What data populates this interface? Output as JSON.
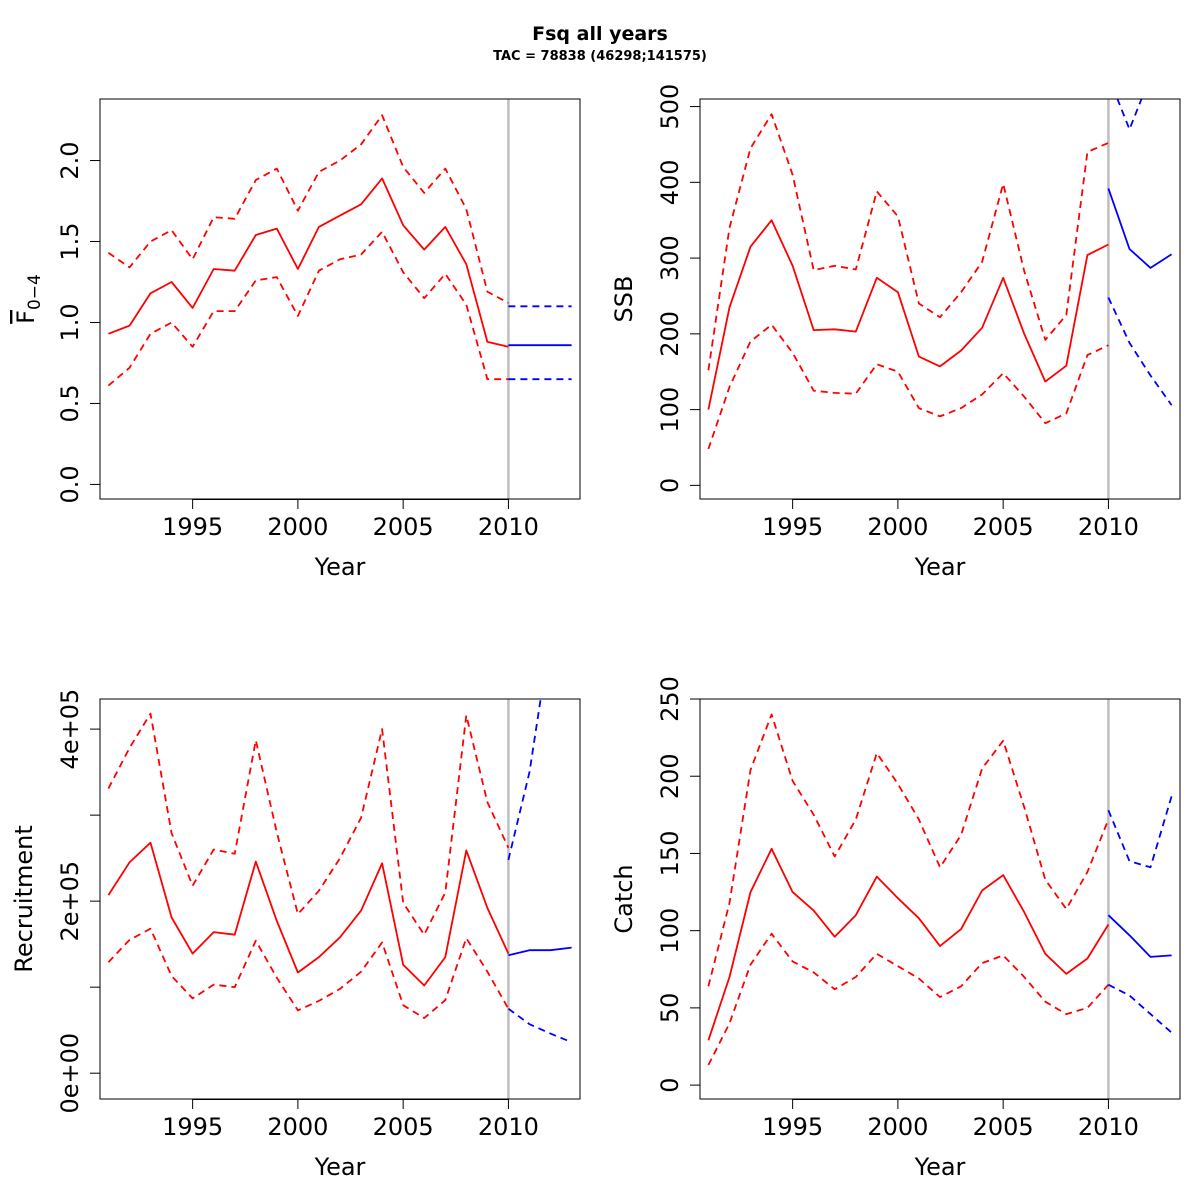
{
  "figure": {
    "title": "Fsq all years",
    "subtitle": "TAC = 78838 (46298;141575)"
  },
  "colors": {
    "history": "#ff0000",
    "forecast": "#0000ff",
    "vline": "#bebebe",
    "axis": "#000000"
  },
  "chart_data": [
    {
      "type": "line",
      "id": "fbar",
      "xlabel": "Year",
      "ylabel": "F 0-4",
      "ylabel_main": "F",
      "ylabel_sub": "0−4",
      "xlim": [
        1990.6,
        2013.4
      ],
      "ylim": [
        -0.09,
        2.38
      ],
      "xticks": [
        1995,
        2000,
        2005,
        2010
      ],
      "yticks": [
        0.0,
        0.5,
        1.0,
        1.5,
        2.0
      ],
      "ytick_labels": [
        "0.0",
        "0.5",
        "1.0",
        "1.5",
        "2.0"
      ],
      "vline": 2010,
      "history": {
        "x": [
          1991,
          1992,
          1993,
          1994,
          1995,
          1996,
          1997,
          1998,
          1999,
          2000,
          2001,
          2002,
          2003,
          2004,
          2005,
          2006,
          2007,
          2008,
          2009,
          2010
        ],
        "median": [
          0.93,
          0.98,
          1.18,
          1.25,
          1.09,
          1.33,
          1.32,
          1.54,
          1.58,
          1.33,
          1.59,
          1.66,
          1.73,
          1.89,
          1.6,
          1.45,
          1.59,
          1.36,
          0.88,
          0.85
        ],
        "lower": [
          0.61,
          0.72,
          0.93,
          1.0,
          0.85,
          1.07,
          1.07,
          1.26,
          1.28,
          1.04,
          1.32,
          1.39,
          1.42,
          1.56,
          1.31,
          1.15,
          1.3,
          1.11,
          0.65,
          0.65
        ],
        "upper": [
          1.43,
          1.34,
          1.5,
          1.57,
          1.39,
          1.65,
          1.64,
          1.88,
          1.95,
          1.69,
          1.93,
          2.0,
          2.1,
          2.28,
          1.96,
          1.8,
          1.95,
          1.7,
          1.19,
          1.12
        ]
      },
      "forecast": {
        "x": [
          2010,
          2011,
          2012,
          2013
        ],
        "median": [
          0.86,
          0.86,
          0.86,
          0.86
        ],
        "lower": [
          0.65,
          0.65,
          0.65,
          0.65
        ],
        "upper": [
          1.1,
          1.1,
          1.1,
          1.1
        ]
      }
    },
    {
      "type": "line",
      "id": "ssb",
      "xlabel": "Year",
      "ylabel": "SSB",
      "xlim": [
        1990.6,
        2013.4
      ],
      "ylim": [
        -18,
        510
      ],
      "xticks": [
        1995,
        2000,
        2005,
        2010
      ],
      "yticks": [
        0,
        100,
        200,
        300,
        400,
        500
      ],
      "ytick_labels": [
        "0",
        "100",
        "200",
        "300",
        "400",
        "500"
      ],
      "vline": 2010,
      "history": {
        "x": [
          1991,
          1992,
          1993,
          1994,
          1995,
          1996,
          1997,
          1998,
          1999,
          2000,
          2001,
          2002,
          2003,
          2004,
          2005,
          2006,
          2007,
          2008,
          2009,
          2010
        ],
        "median": [
          100,
          235,
          315,
          350,
          290,
          205,
          206,
          203,
          274,
          255,
          170,
          157,
          178,
          208,
          274,
          200,
          137,
          158,
          304,
          318
        ],
        "lower": [
          48,
          130,
          190,
          212,
          175,
          125,
          122,
          121,
          160,
          150,
          102,
          91,
          102,
          120,
          148,
          117,
          82,
          95,
          172,
          185
        ],
        "upper": [
          152,
          340,
          445,
          490,
          410,
          284,
          290,
          285,
          388,
          355,
          240,
          222,
          255,
          295,
          398,
          283,
          192,
          225,
          440,
          452
        ]
      },
      "forecast": {
        "x": [
          2010,
          2011,
          2012,
          2013
        ],
        "median": [
          392,
          312,
          287,
          305
        ],
        "lower": [
          248,
          188,
          145,
          106
        ],
        "upper": [
          540,
          470,
          540,
          590
        ]
      }
    },
    {
      "type": "line",
      "id": "recruitment",
      "xlabel": "Year",
      "ylabel": "Recruitment",
      "xlim": [
        1990.6,
        2013.4
      ],
      "ylim": [
        -30000,
        435000
      ],
      "xticks": [
        1995,
        2000,
        2005,
        2010
      ],
      "yticks": [
        0,
        100000,
        200000,
        300000,
        400000
      ],
      "ytick_labels": [
        "0e+00",
        "",
        "2e+05",
        "",
        "4e+05"
      ],
      "vline": 2010,
      "history": {
        "x": [
          1991,
          1992,
          1993,
          1994,
          1995,
          1996,
          1997,
          1998,
          1999,
          2000,
          2001,
          2002,
          2003,
          2004,
          2005,
          2006,
          2007,
          2008,
          2009,
          2010
        ],
        "median": [
          207000,
          245000,
          268000,
          181000,
          139000,
          164000,
          161000,
          246000,
          177000,
          117000,
          135000,
          158000,
          189000,
          244000,
          126000,
          102000,
          135000,
          259000,
          192000,
          139000
        ],
        "lower": [
          129000,
          155000,
          168000,
          113000,
          87000,
          103000,
          100000,
          154000,
          111000,
          73000,
          84000,
          98000,
          118000,
          152000,
          79000,
          64000,
          85000,
          157000,
          118000,
          75000
        ],
        "upper": [
          331000,
          378000,
          418000,
          279000,
          218000,
          260000,
          255000,
          387000,
          280000,
          185000,
          212000,
          250000,
          297000,
          400000,
          198000,
          161000,
          210000,
          416000,
          315000,
          262000
        ]
      },
      "forecast": {
        "x": [
          2010,
          2011,
          2012,
          2013
        ],
        "median": [
          137000,
          143000,
          143000,
          146000
        ],
        "lower": [
          75000,
          57000,
          46000,
          36000
        ],
        "upper": [
          248000,
          350000,
          510000,
          600000
        ]
      }
    },
    {
      "type": "line",
      "id": "catch",
      "xlabel": "Year",
      "ylabel": "Catch",
      "xlim": [
        1990.6,
        2013.4
      ],
      "ylim": [
        -9,
        250
      ],
      "xticks": [
        1995,
        2000,
        2005,
        2010
      ],
      "yticks": [
        0,
        50,
        100,
        150,
        200,
        250
      ],
      "ytick_labels": [
        "0",
        "50",
        "100",
        "150",
        "200",
        "250"
      ],
      "vline": 2010,
      "history": {
        "x": [
          1991,
          1992,
          1993,
          1994,
          1995,
          1996,
          1997,
          1998,
          1999,
          2000,
          2001,
          2002,
          2003,
          2004,
          2005,
          2006,
          2007,
          2008,
          2009,
          2010
        ],
        "median": [
          29,
          70,
          125,
          153,
          125,
          113,
          96,
          110,
          135,
          121,
          108,
          90,
          101,
          126,
          136,
          112,
          85,
          72,
          82,
          104
        ],
        "lower": [
          13,
          40,
          78,
          98,
          80,
          73,
          62,
          70,
          85,
          77,
          69,
          57,
          64,
          79,
          84,
          70,
          54,
          46,
          50,
          65
        ],
        "upper": [
          64,
          118,
          204,
          240,
          197,
          175,
          148,
          172,
          215,
          195,
          172,
          141,
          162,
          205,
          223,
          180,
          133,
          114,
          138,
          172
        ]
      },
      "forecast": {
        "x": [
          2010,
          2011,
          2012,
          2013
        ],
        "median": [
          110,
          97,
          83,
          84
        ],
        "lower": [
          65,
          58,
          46,
          34
        ],
        "upper": [
          178,
          145,
          141,
          187
        ]
      }
    }
  ]
}
